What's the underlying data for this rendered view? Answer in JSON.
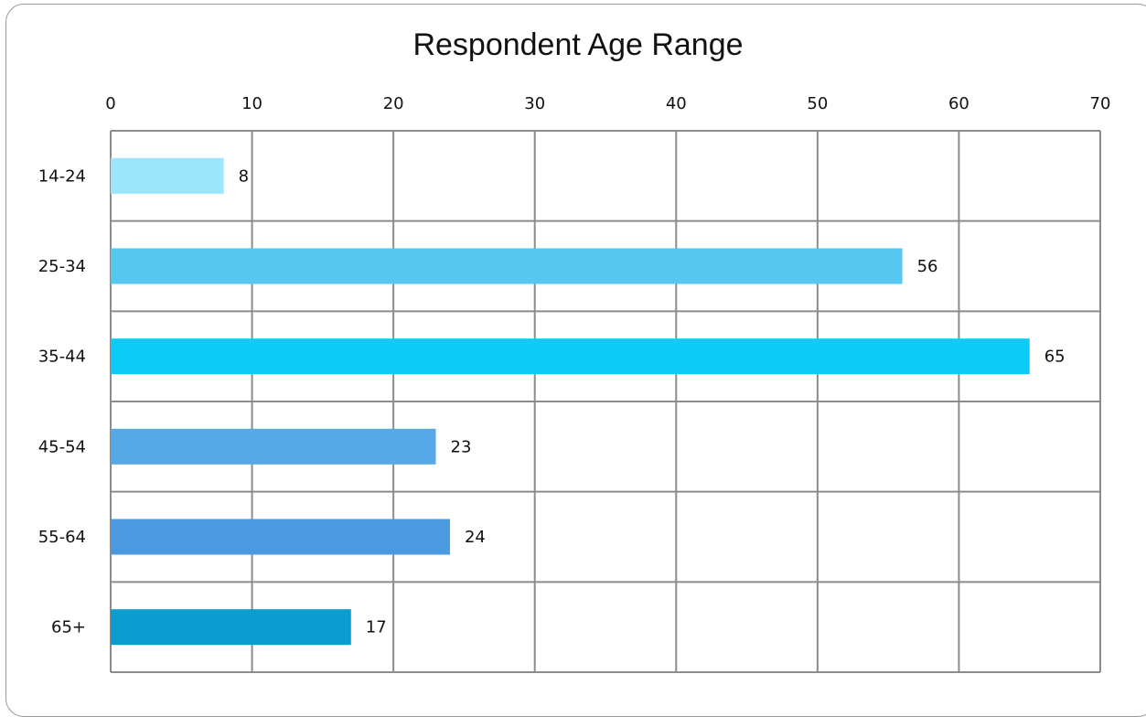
{
  "chart_data": {
    "type": "bar",
    "orientation": "horizontal",
    "title": "Respondent Age Range",
    "xlabel": "",
    "ylabel": "",
    "categories": [
      "14-24",
      "25-34",
      "35-44",
      "45-54",
      "55-64",
      "65+"
    ],
    "values": [
      8,
      56,
      65,
      23,
      24,
      17
    ],
    "xlim": [
      0,
      70
    ],
    "x_ticks": [
      "0",
      "10",
      "20",
      "30",
      "40",
      "50",
      "60",
      "70"
    ],
    "x_axis_position": "top",
    "grid": true,
    "legend": "none",
    "colors": [
      "#9be6fb",
      "#56c7ef",
      "#0dcbf9",
      "#56a9e6",
      "#4b99de",
      "#0b9cd0"
    ]
  }
}
